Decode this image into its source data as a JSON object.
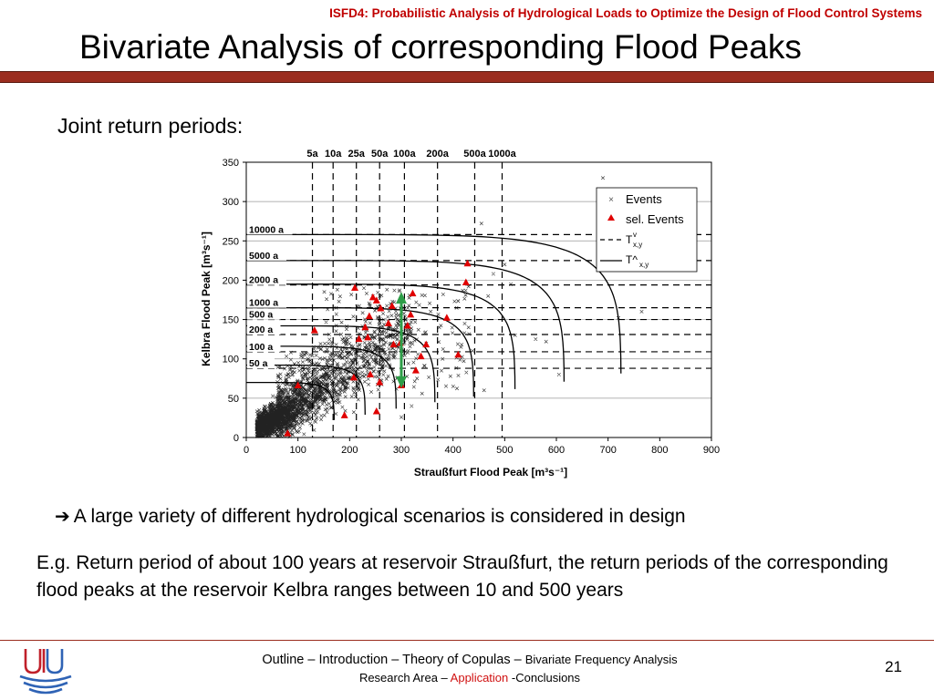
{
  "header": {
    "conference": "ISFD4: Probabilistic Analysis of Hydrological Loads to Optimize the Design of Flood Control Systems",
    "title": "Bivariate Analysis of corresponding Flood Peaks"
  },
  "subheading": "Joint return periods:",
  "chart_data": {
    "type": "scatter",
    "xlabel": "Straußfurt Flood Peak [m³s⁻¹]",
    "ylabel": "Kelbra Flood Peak [m³s⁻¹]",
    "xlim": [
      0,
      900
    ],
    "ylim": [
      0,
      350
    ],
    "x_ticks": [
      "0",
      "100",
      "200",
      "300",
      "400",
      "500",
      "600",
      "700",
      "800",
      "900"
    ],
    "y_ticks": [
      "0",
      "50",
      "100",
      "150",
      "200",
      "250",
      "300",
      "350"
    ],
    "grid": "horizontal",
    "legend": {
      "placement": "top-right",
      "events": "Events",
      "sel_events": "sel. Events",
      "t_dashed_main": "T",
      "t_dashed_sup": "v",
      "t_dashed_sub": "x,y",
      "t_solid_main": "T^",
      "t_solid_sub": "x,y"
    },
    "top_labels": [
      {
        "label": "5a",
        "x": 128
      },
      {
        "label": "10a",
        "x": 168
      },
      {
        "label": "25a",
        "x": 213
      },
      {
        "label": "50a",
        "x": 258
      },
      {
        "label": "100a",
        "x": 306
      },
      {
        "label": "200a",
        "x": 370
      },
      {
        "label": "500a",
        "x": 442
      },
      {
        "label": "1000a",
        "x": 495
      }
    ],
    "marginal_x": [
      128,
      168,
      213,
      258,
      306,
      370,
      442,
      495
    ],
    "marginal_y": [
      {
        "label": "50 a",
        "y": 88
      },
      {
        "label": "100 a",
        "y": 109
      },
      {
        "label": "200 a",
        "y": 131
      },
      {
        "label": "500 a",
        "y": 150
      },
      {
        "label": "1000 a",
        "y": 165
      },
      {
        "label": "2000 a",
        "y": 194
      },
      {
        "label": "5000 a",
        "y": 225
      },
      {
        "label": "10000 a",
        "y": 258
      }
    ],
    "joint_curves": [
      {
        "a": 170,
        "b": 70
      },
      {
        "a": 230,
        "b": 92
      },
      {
        "a": 290,
        "b": 116
      },
      {
        "a": 365,
        "b": 142
      },
      {
        "a": 440,
        "b": 165
      },
      {
        "a": 520,
        "b": 195
      },
      {
        "a": 615,
        "b": 225
      },
      {
        "a": 725,
        "b": 258
      }
    ],
    "selected_events": [
      [
        80,
        5
      ],
      [
        100,
        66
      ],
      [
        132,
        136
      ],
      [
        190,
        28
      ],
      [
        208,
        76
      ],
      [
        210,
        190
      ],
      [
        218,
        125
      ],
      [
        235,
        127
      ],
      [
        240,
        80
      ],
      [
        238,
        154
      ],
      [
        245,
        178
      ],
      [
        252,
        174
      ],
      [
        258,
        70
      ],
      [
        260,
        164
      ],
      [
        275,
        145
      ],
      [
        282,
        167
      ],
      [
        285,
        118
      ],
      [
        298,
        120
      ],
      [
        300,
        66
      ],
      [
        312,
        142
      ],
      [
        318,
        156
      ],
      [
        322,
        183
      ],
      [
        328,
        85
      ],
      [
        338,
        103
      ],
      [
        348,
        118
      ],
      [
        388,
        152
      ],
      [
        425,
        197
      ],
      [
        428,
        221
      ],
      [
        410,
        105
      ],
      [
        252,
        33
      ],
      [
        230,
        140
      ]
    ],
    "arrow": {
      "x": 300,
      "y_from": 65,
      "y_to": 183,
      "color": "#2e9e48"
    }
  },
  "bullet": "A large variety of different hydrological scenarios is considered in design",
  "explanation": "E.g. Return period of about 100 years at reservoir Straußfurt, the return periods of the corresponding flood peaks at the reservoir Kelbra ranges between 10 and 500 years",
  "footer": {
    "nav_part1": "Outline – Introduction – Theory of Copulas – ",
    "nav_part2": "Bivariate Frequency Analysis",
    "nav_part3": "Research Area – ",
    "nav_highlight": "Application",
    "nav_part4": " -Conclusions",
    "page_number": "21"
  },
  "colors": {
    "accent_bar": "#9b2d1f",
    "header_red": "#c00000",
    "selected_marker": "#e00000",
    "arrow_green": "#2e9e48",
    "logo_blue": "#2f63b5",
    "logo_red": "#c0202a"
  }
}
